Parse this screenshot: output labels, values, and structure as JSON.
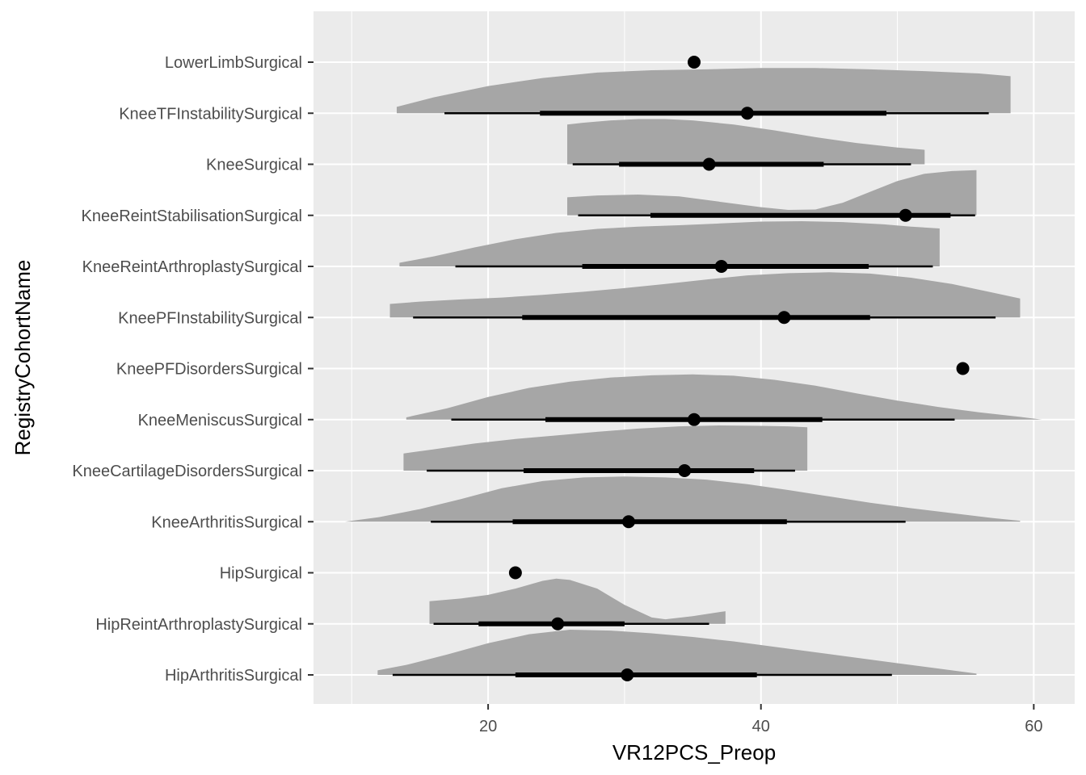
{
  "chart_data": {
    "type": "halfeye",
    "xlabel": "VR12PCS_Preop",
    "ylabel": "RegistryCohortName",
    "xlim": [
      7.2,
      63.0
    ],
    "x_ticks": [
      20,
      40,
      60
    ],
    "grid": true,
    "categories": [
      "LowerLimbSurgical",
      "KneeTFInstabilitySurgical",
      "KneeSurgical",
      "KneeReintStabilisationSurgical",
      "KneeReintArthroplastySurgical",
      "KneePFInstabilitySurgical",
      "KneePFDisordersSurgical",
      "KneeMeniscusSurgical",
      "KneeCartilageDisordersSurgical",
      "KneeArthritisSurgical",
      "HipSurgical",
      "HipReintArthroplastySurgical",
      "HipArthritisSurgical"
    ],
    "series": [
      {
        "category": "LowerLimbSurgical",
        "point": 35.1,
        "interval66": null,
        "interval95": null,
        "density": []
      },
      {
        "category": "KneeTFInstabilitySurgical",
        "point": 39.0,
        "interval66": [
          23.8,
          49.2
        ],
        "interval95": [
          16.8,
          56.7
        ],
        "density": [
          [
            13.3,
            0.14
          ],
          [
            16,
            0.35
          ],
          [
            20,
            0.6
          ],
          [
            24,
            0.78
          ],
          [
            28,
            0.9
          ],
          [
            32,
            0.95
          ],
          [
            36,
            0.97
          ],
          [
            40,
            1.0
          ],
          [
            44,
            1.0
          ],
          [
            48,
            0.97
          ],
          [
            52,
            0.93
          ],
          [
            56,
            0.88
          ],
          [
            58.3,
            0.82
          ]
        ]
      },
      {
        "category": "KneeSurgical",
        "point": 36.2,
        "interval66": [
          29.6,
          44.6
        ],
        "interval95": [
          26.2,
          51.0
        ],
        "density": [
          [
            25.8,
            0.88
          ],
          [
            27,
            0.92
          ],
          [
            29,
            0.97
          ],
          [
            31,
            1.0
          ],
          [
            33,
            1.0
          ],
          [
            35,
            0.97
          ],
          [
            38,
            0.88
          ],
          [
            41,
            0.75
          ],
          [
            44,
            0.6
          ],
          [
            47,
            0.47
          ],
          [
            50,
            0.37
          ],
          [
            52.0,
            0.32
          ]
        ]
      },
      {
        "category": "KneeReintStabilisationSurgical",
        "point": 50.6,
        "interval66": [
          31.9,
          53.9
        ],
        "interval95": [
          26.6,
          55.7
        ],
        "density": [
          [
            25.8,
            0.4
          ],
          [
            28,
            0.44
          ],
          [
            31,
            0.46
          ],
          [
            34,
            0.42
          ],
          [
            37,
            0.3
          ],
          [
            40,
            0.18
          ],
          [
            42,
            0.12
          ],
          [
            44,
            0.13
          ],
          [
            46,
            0.28
          ],
          [
            48,
            0.52
          ],
          [
            50,
            0.76
          ],
          [
            52,
            0.92
          ],
          [
            54,
            0.98
          ],
          [
            55.8,
            1.0
          ]
        ]
      },
      {
        "category": "KneeReintArthroplastySurgical",
        "point": 37.1,
        "interval66": [
          26.9,
          47.9
        ],
        "interval95": [
          17.6,
          52.6
        ],
        "density": [
          [
            13.5,
            0.08
          ],
          [
            16,
            0.22
          ],
          [
            19,
            0.42
          ],
          [
            22,
            0.6
          ],
          [
            25,
            0.74
          ],
          [
            28,
            0.83
          ],
          [
            31,
            0.88
          ],
          [
            34,
            0.91
          ],
          [
            37,
            0.95
          ],
          [
            40,
            0.99
          ],
          [
            43,
            1.0
          ],
          [
            46,
            0.98
          ],
          [
            49,
            0.93
          ],
          [
            51,
            0.88
          ],
          [
            53.1,
            0.84
          ]
        ]
      },
      {
        "category": "KneePFInstabilitySurgical",
        "point": 41.7,
        "interval66": [
          22.5,
          48.0
        ],
        "interval95": [
          14.5,
          57.2
        ],
        "density": [
          [
            12.8,
            0.3
          ],
          [
            15,
            0.35
          ],
          [
            18,
            0.4
          ],
          [
            21,
            0.44
          ],
          [
            24,
            0.5
          ],
          [
            27,
            0.57
          ],
          [
            30,
            0.65
          ],
          [
            33,
            0.74
          ],
          [
            36,
            0.84
          ],
          [
            39,
            0.93
          ],
          [
            42,
            0.98
          ],
          [
            45,
            1.0
          ],
          [
            48,
            0.97
          ],
          [
            51,
            0.88
          ],
          [
            54,
            0.74
          ],
          [
            57,
            0.55
          ],
          [
            59.0,
            0.42
          ]
        ]
      },
      {
        "category": "KneePFDisordersSurgical",
        "point": 54.8,
        "interval66": null,
        "interval95": null,
        "density": []
      },
      {
        "category": "KneeMeniscusSurgical",
        "point": 35.1,
        "interval66": [
          24.2,
          44.5
        ],
        "interval95": [
          17.3,
          54.2
        ],
        "density": [
          [
            14.0,
            0.05
          ],
          [
            17,
            0.25
          ],
          [
            20,
            0.5
          ],
          [
            23,
            0.7
          ],
          [
            26,
            0.84
          ],
          [
            29,
            0.93
          ],
          [
            32,
            0.98
          ],
          [
            35,
            1.0
          ],
          [
            38,
            0.97
          ],
          [
            41,
            0.88
          ],
          [
            44,
            0.75
          ],
          [
            47,
            0.58
          ],
          [
            50,
            0.42
          ],
          [
            53,
            0.28
          ],
          [
            56,
            0.16
          ],
          [
            59,
            0.06
          ],
          [
            60.6,
            0.0
          ]
        ]
      },
      {
        "category": "KneeCartilageDisordersSurgical",
        "point": 34.4,
        "interval66": [
          22.6,
          39.5
        ],
        "interval95": [
          15.5,
          42.5
        ],
        "density": [
          [
            13.8,
            0.38
          ],
          [
            16,
            0.47
          ],
          [
            19,
            0.6
          ],
          [
            22,
            0.7
          ],
          [
            25,
            0.78
          ],
          [
            28,
            0.86
          ],
          [
            31,
            0.93
          ],
          [
            34,
            0.98
          ],
          [
            37,
            1.0
          ],
          [
            40,
            0.99
          ],
          [
            42,
            0.98
          ],
          [
            43.4,
            0.96
          ]
        ]
      },
      {
        "category": "KneeArthritisSurgical",
        "point": 30.3,
        "interval66": [
          21.8,
          41.9
        ],
        "interval95": [
          15.8,
          50.6
        ],
        "density": [
          [
            9.5,
            0.0
          ],
          [
            12,
            0.1
          ],
          [
            15,
            0.28
          ],
          [
            18,
            0.5
          ],
          [
            21,
            0.74
          ],
          [
            24,
            0.9
          ],
          [
            27,
            0.98
          ],
          [
            30,
            1.0
          ],
          [
            33,
            0.98
          ],
          [
            36,
            0.93
          ],
          [
            39,
            0.83
          ],
          [
            42,
            0.7
          ],
          [
            45,
            0.56
          ],
          [
            48,
            0.42
          ],
          [
            51,
            0.3
          ],
          [
            54,
            0.19
          ],
          [
            57,
            0.08
          ],
          [
            59.0,
            0.02
          ]
        ]
      },
      {
        "category": "HipSurgical",
        "point": 22.0,
        "interval66": null,
        "interval95": null,
        "density": []
      },
      {
        "category": "HipReintArthroplastySurgical",
        "point": 25.1,
        "interval66": [
          19.3,
          30.0
        ],
        "interval95": [
          16.0,
          36.2
        ],
        "density": [
          [
            15.7,
            0.5
          ],
          [
            18,
            0.56
          ],
          [
            20,
            0.64
          ],
          [
            22,
            0.78
          ],
          [
            24,
            0.95
          ],
          [
            25,
            1.0
          ],
          [
            26,
            0.97
          ],
          [
            28,
            0.78
          ],
          [
            30,
            0.42
          ],
          [
            32,
            0.14
          ],
          [
            33,
            0.1
          ],
          [
            35,
            0.17
          ],
          [
            37.4,
            0.28
          ]
        ]
      },
      {
        "category": "HipArthritisSurgical",
        "point": 30.2,
        "interval66": [
          22.0,
          39.7
        ],
        "interval95": [
          13.0,
          49.6
        ],
        "density": [
          [
            11.9,
            0.1
          ],
          [
            14,
            0.22
          ],
          [
            17,
            0.45
          ],
          [
            20,
            0.7
          ],
          [
            23,
            0.9
          ],
          [
            26,
            1.0
          ],
          [
            29,
            0.98
          ],
          [
            32,
            0.92
          ],
          [
            35,
            0.84
          ],
          [
            38,
            0.74
          ],
          [
            41,
            0.62
          ],
          [
            44,
            0.5
          ],
          [
            47,
            0.38
          ],
          [
            50,
            0.26
          ],
          [
            53,
            0.14
          ],
          [
            55.8,
            0.03
          ]
        ]
      }
    ]
  }
}
